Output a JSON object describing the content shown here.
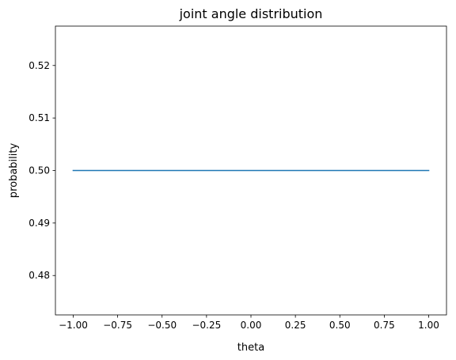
{
  "chart_data": {
    "type": "line",
    "title": "joint angle distribution",
    "xlabel": "theta",
    "ylabel": "probability",
    "xlim": [
      -1.1,
      1.1
    ],
    "ylim": [
      0.4725,
      0.5275
    ],
    "xticks": [
      -1.0,
      -0.75,
      -0.5,
      -0.25,
      0.0,
      0.25,
      0.5,
      0.75,
      1.0
    ],
    "xtick_labels": [
      "−1.00",
      "−0.75",
      "−0.50",
      "−0.25",
      "0.00",
      "0.25",
      "0.50",
      "0.75",
      "1.00"
    ],
    "yticks": [
      0.48,
      0.49,
      0.5,
      0.51,
      0.52
    ],
    "ytick_labels": [
      "0.48",
      "0.49",
      "0.50",
      "0.51",
      "0.52"
    ],
    "grid": false,
    "series": [
      {
        "x": [
          -1.0,
          1.0
        ],
        "y": [
          0.5,
          0.5
        ],
        "color": "#1f77b4"
      }
    ]
  }
}
